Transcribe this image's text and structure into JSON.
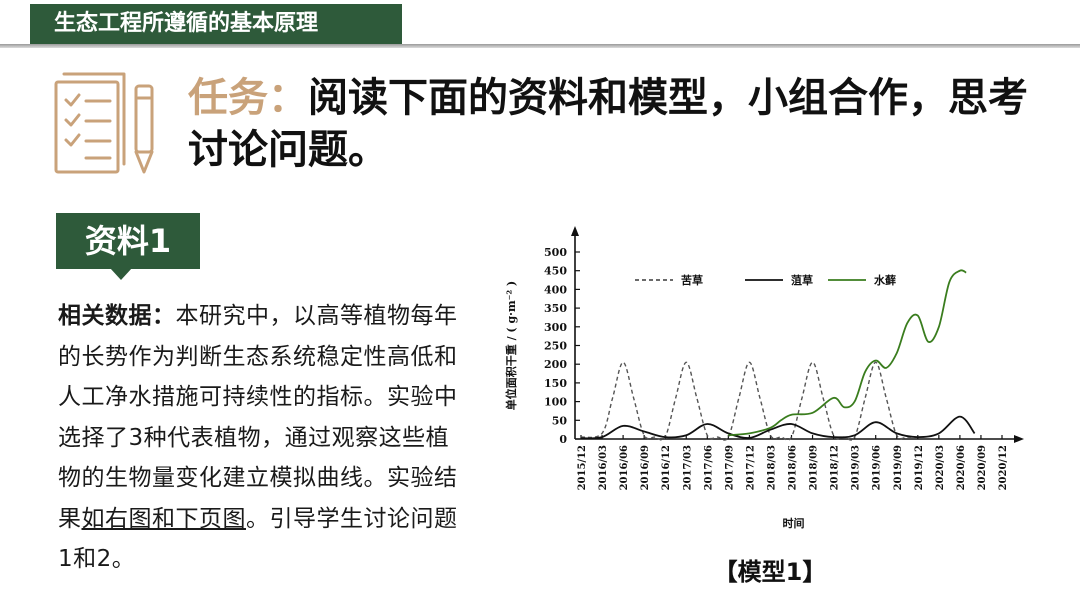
{
  "header": {
    "banner_title": "生态工程所遵循的基本原理"
  },
  "task": {
    "label": "任务：",
    "text": "阅读下面的资料和模型，小组合作，思考讨论问题。"
  },
  "source": {
    "tag": "资料1",
    "lead": "相关数据：",
    "text_main": "本研究中，以高等植物每年的长势作为判断生态系统稳定性高低和人工净水措施可持续性的指标。实验中选择了3种代表植物，通过观察这些植物的生物量变化建立模拟曲线。实验结果",
    "text_linked": "如右图和下页图",
    "text_tail": "。引导学生讨论问题1和2。"
  },
  "chart_caption": "【模型1】",
  "colors": {
    "banner": "#2e5a3a",
    "accent": "#c9a27a",
    "series_green": "#3a7d1e"
  },
  "chart_data": {
    "type": "line",
    "title": "",
    "xlabel": "时间",
    "ylabel": "单位面积干重 / ( g·m⁻² )",
    "ylim": [
      0,
      500
    ],
    "yticks": [
      0,
      50,
      100,
      150,
      200,
      250,
      300,
      350,
      400,
      450,
      500
    ],
    "x_ticks": [
      "2015/12",
      "2016/03",
      "2016/06",
      "2016/09",
      "2016/12",
      "2017/03",
      "2017/06",
      "2017/09",
      "2017/12",
      "2018/03",
      "2018/06",
      "2018/09",
      "2018/12",
      "2019/03",
      "2019/06",
      "2019/09",
      "2019/12",
      "2020/03",
      "2020/06",
      "2020/09",
      "2020/12"
    ],
    "legend_placement": "top",
    "series": [
      {
        "name": "苦草",
        "style": "dashed",
        "color": "#555555",
        "points": [
          [
            0,
            5
          ],
          [
            1,
            15
          ],
          [
            1.5,
            110
          ],
          [
            2,
            205
          ],
          [
            2.5,
            110
          ],
          [
            3,
            10
          ],
          [
            3.5,
            5
          ],
          [
            4,
            5
          ],
          [
            4.5,
            110
          ],
          [
            5,
            205
          ],
          [
            5.5,
            110
          ],
          [
            6,
            10
          ],
          [
            6.5,
            5
          ],
          [
            7,
            5
          ],
          [
            7.5,
            110
          ],
          [
            8,
            205
          ],
          [
            8.5,
            110
          ],
          [
            9,
            10
          ],
          [
            9.5,
            5
          ],
          [
            10,
            5
          ],
          [
            10.5,
            110
          ],
          [
            11,
            205
          ],
          [
            11.5,
            110
          ],
          [
            12,
            10
          ],
          [
            12.5,
            5
          ],
          [
            13,
            5
          ],
          [
            13.5,
            110
          ],
          [
            14,
            205
          ],
          [
            14.5,
            110
          ],
          [
            15,
            10
          ],
          [
            15.5,
            5
          ],
          [
            16,
            5
          ]
        ]
      },
      {
        "name": "菹草",
        "style": "solid",
        "color": "#111111",
        "points": [
          [
            0,
            2
          ],
          [
            1,
            5
          ],
          [
            2,
            35
          ],
          [
            3,
            20
          ],
          [
            4,
            5
          ],
          [
            5,
            10
          ],
          [
            6,
            40
          ],
          [
            7,
            15
          ],
          [
            8,
            3
          ],
          [
            9,
            25
          ],
          [
            10,
            40
          ],
          [
            11,
            15
          ],
          [
            12,
            5
          ],
          [
            13,
            10
          ],
          [
            14,
            45
          ],
          [
            15,
            15
          ],
          [
            16,
            5
          ],
          [
            17,
            15
          ],
          [
            18,
            60
          ],
          [
            18.7,
            15
          ]
        ]
      },
      {
        "name": "水藓",
        "style": "solid",
        "color": "#3a7d1e",
        "points": [
          [
            7,
            10
          ],
          [
            8,
            15
          ],
          [
            9,
            30
          ],
          [
            9.5,
            50
          ],
          [
            10,
            65
          ],
          [
            11,
            70
          ],
          [
            12,
            110
          ],
          [
            12.5,
            85
          ],
          [
            13,
            100
          ],
          [
            13.5,
            180
          ],
          [
            14,
            210
          ],
          [
            14.5,
            190
          ],
          [
            15,
            230
          ],
          [
            15.5,
            310
          ],
          [
            16,
            330
          ],
          [
            16.5,
            260
          ],
          [
            17,
            300
          ],
          [
            17.5,
            420
          ],
          [
            18,
            450
          ],
          [
            18.3,
            445
          ]
        ]
      }
    ]
  }
}
